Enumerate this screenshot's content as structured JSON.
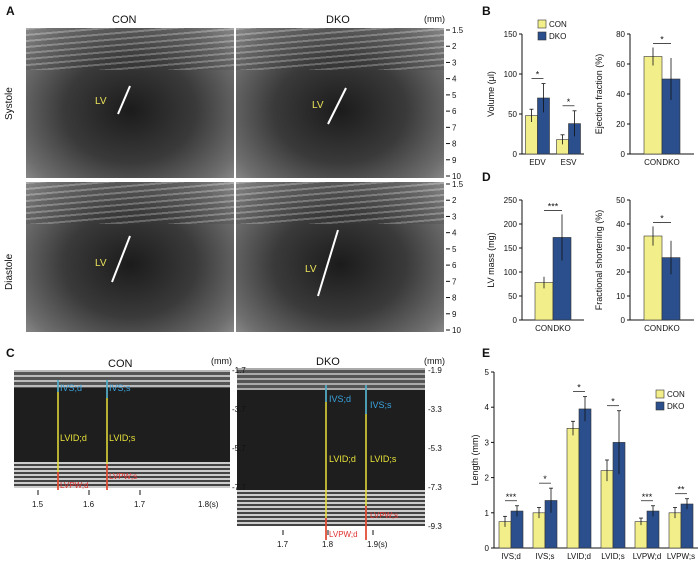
{
  "panels": {
    "A": "A",
    "B": "B",
    "C": "C",
    "D": "D",
    "E": "E"
  },
  "echo": {
    "con_title": "CON",
    "dko_title": "DKO",
    "mm_unit": "(mm)",
    "row_systole": "Systole",
    "row_diastole": "Diastole",
    "lv": "LV",
    "depth_ticks": [
      "1.5",
      "2",
      "3",
      "4",
      "5",
      "6",
      "7",
      "8",
      "9",
      "10"
    ]
  },
  "mmode": {
    "con_title": "CON",
    "dko_title": "DKO",
    "mm_unit": "(mm)",
    "s_unit": "1.8(s)",
    "con_depth": [
      "-1.7",
      "-3.7",
      "-5.7",
      "-7.7"
    ],
    "dko_depth": [
      "-1.9",
      "-3.3",
      "-5.3",
      "-7.3",
      "-9.3"
    ],
    "con_time": [
      "1.5",
      "1.6",
      "1.7"
    ],
    "dko_time": [
      "1.7",
      "1.8",
      "1.9(s)"
    ],
    "labels": {
      "ivsd": "IVS;d",
      "ivss": "IVS;s",
      "lvidd": "LVID;d",
      "lvids": "LVID;s",
      "lvpwd": "LVPW;d",
      "lvpws": "LVPW;s"
    }
  },
  "colors": {
    "con": "#f2ee8a",
    "dko": "#2b4f8c",
    "yellow_line": "#e8e23a",
    "blue_line": "#3aa4e0",
    "red_line": "#e03030"
  },
  "chart_data": [
    {
      "id": "B-volume",
      "type": "bar",
      "categories": [
        "EDV",
        "ESV"
      ],
      "series": [
        {
          "name": "CON",
          "values": [
            48,
            18
          ]
        },
        {
          "name": "DKO",
          "values": [
            70,
            38
          ]
        }
      ],
      "errors": [
        [
          8,
          6
        ],
        [
          18,
          16
        ]
      ],
      "significance": [
        "*",
        "*"
      ],
      "ylabel": "Volume (μl)",
      "ylim": [
        0,
        150
      ],
      "yticks": [
        0,
        50,
        100,
        150
      ],
      "legend": [
        "CON",
        "DKO"
      ]
    },
    {
      "id": "B-ef",
      "type": "bar",
      "categories": [
        "CON",
        "DKO"
      ],
      "values": [
        65,
        50
      ],
      "errors": [
        6,
        14
      ],
      "significance": "*",
      "ylabel": "Ejection fraction (%)",
      "ylim": [
        0,
        80
      ],
      "yticks": [
        0,
        20,
        40,
        60,
        80
      ]
    },
    {
      "id": "D-lvmass",
      "type": "bar",
      "categories": [
        "CON",
        "DKO"
      ],
      "values": [
        78,
        172
      ],
      "errors": [
        12,
        48
      ],
      "significance": "***",
      "ylabel": "LV mass (mg)",
      "ylim": [
        0,
        250
      ],
      "yticks": [
        0,
        50,
        100,
        150,
        200,
        250
      ]
    },
    {
      "id": "D-fs",
      "type": "bar",
      "categories": [
        "CON",
        "DKO"
      ],
      "values": [
        35,
        26
      ],
      "errors": [
        4,
        7
      ],
      "significance": "*",
      "ylabel": "Fractional shortening (%)",
      "ylim": [
        0,
        50
      ],
      "yticks": [
        0,
        10,
        20,
        30,
        40,
        50
      ]
    },
    {
      "id": "E-length",
      "type": "bar",
      "categories": [
        "IVS;d",
        "IVS;s",
        "LVID;d",
        "LVID;s",
        "LVPW;d",
        "LVPW;s"
      ],
      "series": [
        {
          "name": "CON",
          "values": [
            0.75,
            1.0,
            3.4,
            2.2,
            0.75,
            1.0
          ]
        },
        {
          "name": "DKO",
          "values": [
            1.05,
            1.35,
            3.95,
            3.0,
            1.05,
            1.25
          ]
        }
      ],
      "errors": [
        [
          0.15,
          0.15,
          0.2,
          0.3,
          0.1,
          0.15
        ],
        [
          0.15,
          0.35,
          0.35,
          0.9,
          0.15,
          0.15
        ]
      ],
      "significance": [
        "***",
        "*",
        "*",
        "*",
        "***",
        "**"
      ],
      "ylabel": "Length (mm)",
      "ylim": [
        0,
        5
      ],
      "yticks": [
        0,
        1,
        2,
        3,
        4,
        5
      ],
      "legend": [
        "CON",
        "DKO"
      ]
    }
  ]
}
